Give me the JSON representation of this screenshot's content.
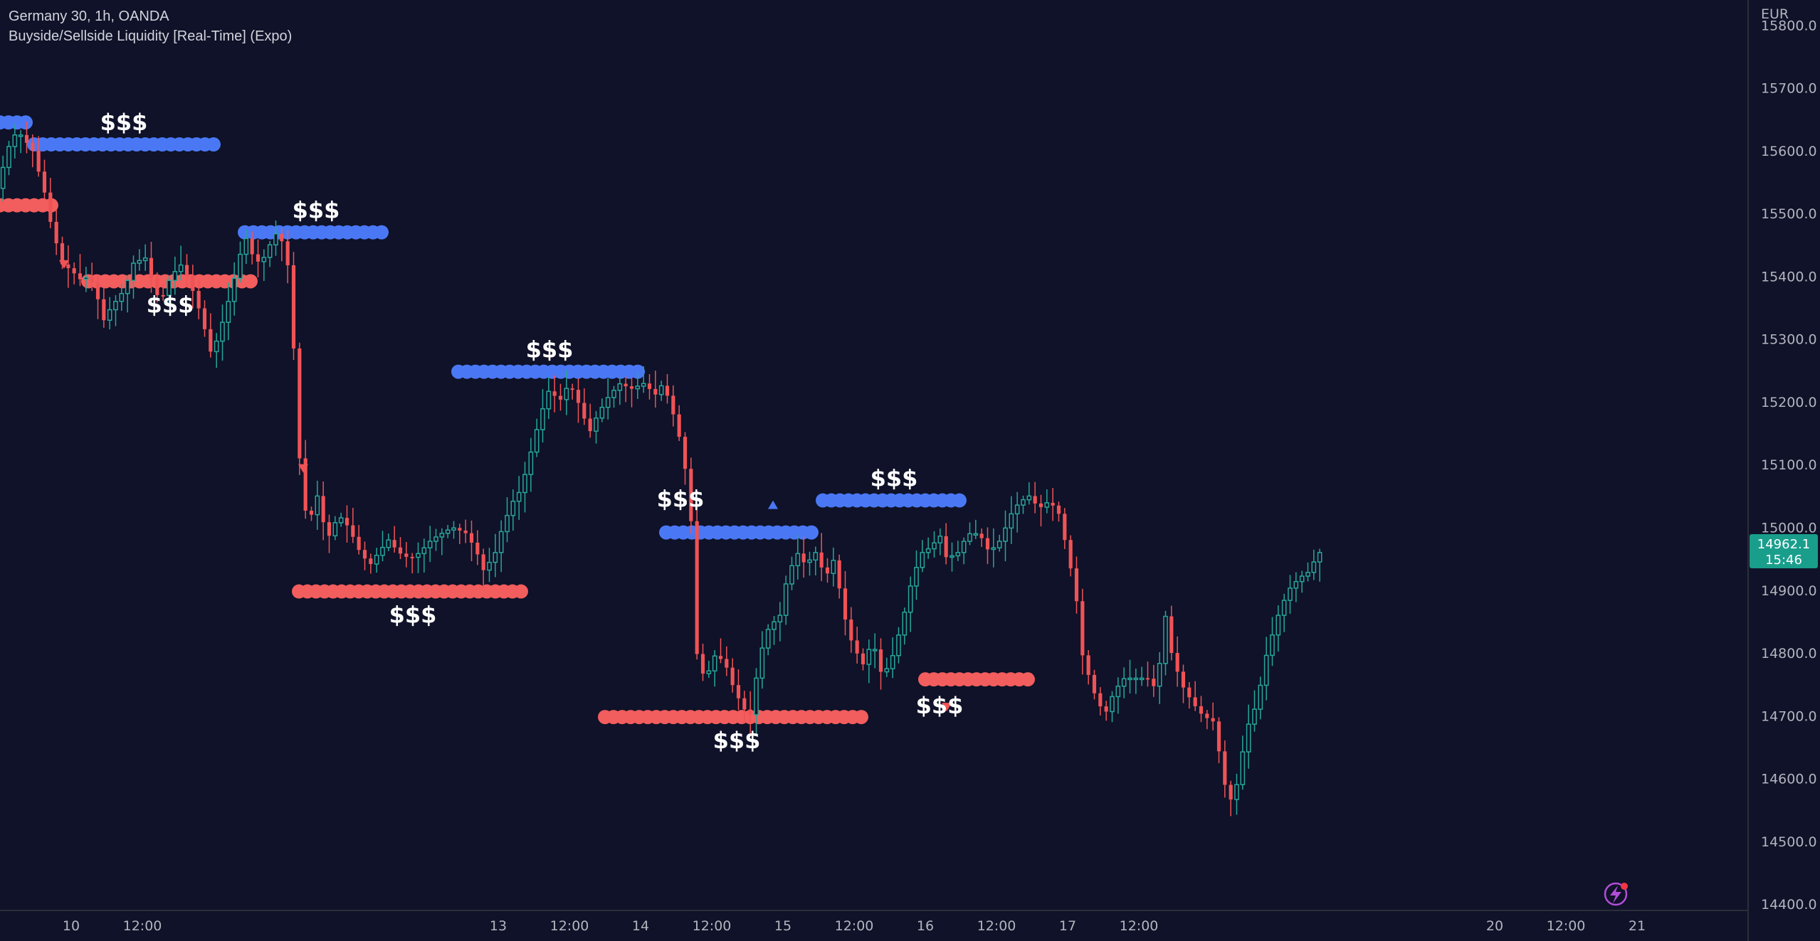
{
  "header": {
    "symbol": "Germany 30, 1h, OANDA",
    "indicator": "Buyside/Sellside Liquidity [Real-Time] (Expo)"
  },
  "colors": {
    "background": "#0f1228",
    "bull": "#26a69a",
    "bear": "#f05356",
    "buyside": "#4a78f5",
    "sellside": "#f25d5d",
    "price_label_bg": "#1a9e8c",
    "axis_text": "#b2b5be"
  },
  "chart_data": {
    "type": "candlestick",
    "symbol": "Germany 30",
    "interval": "1h",
    "currency_label": "EUR",
    "y_ticks": [
      14400,
      14500,
      14600,
      14700,
      14800,
      14900,
      15000,
      15100,
      15200,
      15300,
      15400,
      15500,
      15600,
      15700,
      15800
    ],
    "y_tick_labels": [
      "14400.0",
      "14500.0",
      "14600.0",
      "14700.0",
      "14800.0",
      "14900.0",
      "15000.0",
      "15100.0",
      "15200.0",
      "15300.0",
      "15400.0",
      "15500.0",
      "15600.0",
      "15700.0",
      "15800.0"
    ],
    "ylim": [
      14390,
      15840
    ],
    "xlim": [
      9.5,
      21.5
    ],
    "x_ticks": [
      {
        "x": 10,
        "label": "10"
      },
      {
        "x": 10.5,
        "label": "12:00"
      },
      {
        "x": 13,
        "label": "13"
      },
      {
        "x": 13.5,
        "label": "12:00"
      },
      {
        "x": 14,
        "label": "14"
      },
      {
        "x": 14.5,
        "label": "12:00"
      },
      {
        "x": 15,
        "label": "15"
      },
      {
        "x": 15.5,
        "label": "12:00"
      },
      {
        "x": 16,
        "label": "16"
      },
      {
        "x": 16.5,
        "label": "12:00"
      },
      {
        "x": 17,
        "label": "17"
      },
      {
        "x": 17.5,
        "label": "12:00"
      },
      {
        "x": 20,
        "label": "20"
      },
      {
        "x": 20.5,
        "label": "12:00"
      },
      {
        "x": 21,
        "label": "21"
      }
    ],
    "last_price": 14962.1,
    "last_price_label": "14962.1",
    "countdown": "15:46",
    "candle_path": [
      [
        9.5,
        15540
      ],
      [
        9.55,
        15580
      ],
      [
        9.6,
        15620
      ],
      [
        9.65,
        15630
      ],
      [
        9.75,
        15600
      ],
      [
        9.8,
        15560
      ],
      [
        9.85,
        15520
      ],
      [
        9.88,
        15480
      ],
      [
        9.92,
        15450
      ],
      [
        9.95,
        15420
      ],
      [
        10.02,
        15410
      ],
      [
        10.08,
        15395
      ],
      [
        10.15,
        15400
      ],
      [
        10.2,
        15370
      ],
      [
        10.25,
        15330
      ],
      [
        10.3,
        15350
      ],
      [
        10.4,
        15380
      ],
      [
        10.45,
        15420
      ],
      [
        10.55,
        15430
      ],
      [
        10.6,
        15380
      ],
      [
        10.65,
        15360
      ],
      [
        10.72,
        15400
      ],
      [
        10.8,
        15420
      ],
      [
        10.87,
        15380
      ],
      [
        10.93,
        15340
      ],
      [
        11.0,
        15280
      ],
      [
        11.05,
        15300
      ],
      [
        11.1,
        15340
      ],
      [
        11.15,
        15380
      ],
      [
        11.2,
        15430
      ],
      [
        11.25,
        15460
      ],
      [
        11.3,
        15430
      ],
      [
        11.35,
        15420
      ],
      [
        11.4,
        15440
      ],
      [
        11.45,
        15470
      ],
      [
        11.52,
        15450
      ],
      [
        11.56,
        15390
      ],
      [
        11.62,
        15120
      ],
      [
        11.68,
        15000
      ],
      [
        11.75,
        15050
      ],
      [
        11.82,
        14980
      ],
      [
        11.9,
        15020
      ],
      [
        11.97,
        15000
      ],
      [
        12.05,
        14960
      ],
      [
        12.12,
        14940
      ],
      [
        12.18,
        14960
      ],
      [
        12.25,
        14980
      ],
      [
        12.32,
        14960
      ],
      [
        12.4,
        14950
      ],
      [
        12.47,
        14960
      ],
      [
        12.55,
        14980
      ],
      [
        12.62,
        14990
      ],
      [
        12.7,
        15000
      ],
      [
        12.8,
        14990
      ],
      [
        12.87,
        14960
      ],
      [
        12.92,
        14930
      ],
      [
        13.0,
        14960
      ],
      [
        13.05,
        15000
      ],
      [
        13.12,
        15040
      ],
      [
        13.18,
        15060
      ],
      [
        13.25,
        15120
      ],
      [
        13.32,
        15180
      ],
      [
        13.38,
        15220
      ],
      [
        13.45,
        15200
      ],
      [
        13.52,
        15230
      ],
      [
        13.6,
        15190
      ],
      [
        13.66,
        15150
      ],
      [
        13.72,
        15180
      ],
      [
        13.8,
        15210
      ],
      [
        13.88,
        15230
      ],
      [
        13.95,
        15220
      ],
      [
        14.05,
        15230
      ],
      [
        14.12,
        15210
      ],
      [
        14.18,
        15230
      ],
      [
        14.25,
        15180
      ],
      [
        14.32,
        15120
      ],
      [
        14.38,
        15000
      ],
      [
        14.42,
        14780
      ],
      [
        14.48,
        14760
      ],
      [
        14.55,
        14800
      ],
      [
        14.62,
        14780
      ],
      [
        14.68,
        14740
      ],
      [
        14.75,
        14710
      ],
      [
        14.8,
        14700
      ],
      [
        14.85,
        14790
      ],
      [
        14.92,
        14840
      ],
      [
        15.0,
        14860
      ],
      [
        15.05,
        14920
      ],
      [
        15.12,
        14960
      ],
      [
        15.18,
        14940
      ],
      [
        15.25,
        14960
      ],
      [
        15.32,
        14920
      ],
      [
        15.38,
        14950
      ],
      [
        15.45,
        14860
      ],
      [
        15.5,
        14820
      ],
      [
        15.58,
        14780
      ],
      [
        15.65,
        14820
      ],
      [
        15.72,
        14760
      ],
      [
        15.8,
        14800
      ],
      [
        15.87,
        14860
      ],
      [
        15.93,
        14920
      ],
      [
        16.0,
        14960
      ],
      [
        16.07,
        14970
      ],
      [
        16.12,
        14990
      ],
      [
        16.17,
        14950
      ],
      [
        16.25,
        14960
      ],
      [
        16.32,
        14990
      ],
      [
        16.4,
        14990
      ],
      [
        16.47,
        14960
      ],
      [
        16.55,
        14980
      ],
      [
        16.62,
        15020
      ],
      [
        16.68,
        15040
      ],
      [
        16.75,
        15050
      ],
      [
        16.82,
        15030
      ],
      [
        16.88,
        15040
      ],
      [
        16.95,
        15030
      ],
      [
        17.02,
        14960
      ],
      [
        17.08,
        14890
      ],
      [
        17.12,
        14800
      ],
      [
        17.2,
        14740
      ],
      [
        17.28,
        14700
      ],
      [
        17.35,
        14740
      ],
      [
        17.42,
        14760
      ],
      [
        17.5,
        14760
      ],
      [
        17.58,
        14760
      ],
      [
        17.65,
        14740
      ],
      [
        17.7,
        14870
      ],
      [
        17.75,
        14800
      ],
      [
        17.82,
        14750
      ],
      [
        17.9,
        14720
      ],
      [
        17.97,
        14700
      ],
      [
        18.05,
        14690
      ],
      [
        18.1,
        14620
      ],
      [
        18.15,
        14560
      ],
      [
        18.2,
        14580
      ],
      [
        18.28,
        14680
      ],
      [
        18.35,
        14720
      ],
      [
        18.42,
        14800
      ],
      [
        18.5,
        14860
      ],
      [
        18.57,
        14900
      ],
      [
        18.65,
        14920
      ],
      [
        18.72,
        14930
      ],
      [
        18.78,
        14960
      ]
    ],
    "liquidity_levels": [
      {
        "side": "buyside",
        "price": 15645,
        "x_start": 9.5,
        "x_end": 9.68
      },
      {
        "side": "buyside",
        "price": 15610,
        "x_start": 9.74,
        "x_end": 11.0,
        "label": "$$$",
        "label_pos": "above"
      },
      {
        "side": "sellside",
        "price": 15513,
        "x_start": 9.5,
        "x_end": 9.86
      },
      {
        "side": "sellside",
        "price": 15392,
        "x_start": 10.12,
        "x_end": 11.27,
        "label": "$$$",
        "label_pos": "below"
      },
      {
        "side": "buyside",
        "price": 15470,
        "x_start": 11.22,
        "x_end": 12.22,
        "label": "$$$",
        "label_pos": "above"
      },
      {
        "side": "sellside",
        "price": 14898,
        "x_start": 11.6,
        "x_end": 13.2,
        "label": "$$$",
        "label_pos": "below"
      },
      {
        "side": "buyside",
        "price": 15248,
        "x_start": 12.72,
        "x_end": 14.0,
        "label": "$$$",
        "label_pos": "above"
      },
      {
        "side": "buyside",
        "price": 14992,
        "x_start": 14.18,
        "x_end": 15.25,
        "label": "$$$",
        "label_pos": "above-left"
      },
      {
        "side": "sellside",
        "price": 14698,
        "x_start": 13.75,
        "x_end": 15.6,
        "label": "$$$",
        "label_pos": "below"
      },
      {
        "side": "buyside",
        "price": 15043,
        "x_start": 15.28,
        "x_end": 16.28,
        "label": "$$$",
        "label_pos": "above"
      },
      {
        "side": "sellside",
        "price": 14758,
        "x_start": 16.0,
        "x_end": 16.72,
        "label": "$$$",
        "label_pos": "below-left"
      }
    ],
    "markers": [
      {
        "type": "down-triangle",
        "x": 9.95,
        "price": 15420
      },
      {
        "type": "down-triangle",
        "x": 11.63,
        "price": 15095
      },
      {
        "type": "up-triangle",
        "x": 14.93,
        "price": 15035
      },
      {
        "type": "down-triangle",
        "x": 16.15,
        "price": 14715
      }
    ]
  },
  "labels": {
    "liquidity": "$$$"
  },
  "icons": {
    "bottom_right": "lightning-bolt-icon"
  }
}
